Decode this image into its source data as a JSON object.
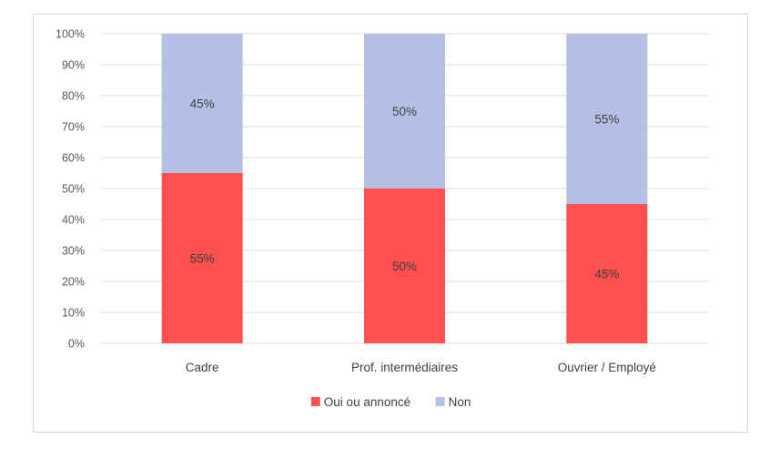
{
  "chart_data": {
    "type": "bar",
    "stacked": true,
    "categories": [
      "Cadre",
      "Prof. intermédiaires",
      "Ouvrier / Employé"
    ],
    "series": [
      {
        "name": "Oui ou annoncé",
        "values": [
          55,
          50,
          45
        ],
        "labels": [
          "55%",
          "50%",
          "45%"
        ],
        "color": "#ff5050"
      },
      {
        "name": "Non",
        "values": [
          45,
          50,
          55
        ],
        "labels": [
          "45%",
          "50%",
          "55%"
        ],
        "color": "#b4c0e4"
      }
    ],
    "y_ticks": [
      "0%",
      "10%",
      "20%",
      "30%",
      "40%",
      "50%",
      "60%",
      "70%",
      "80%",
      "90%",
      "100%"
    ],
    "ylim": [
      0,
      100
    ],
    "grid": true,
    "legend_position": "bottom"
  }
}
